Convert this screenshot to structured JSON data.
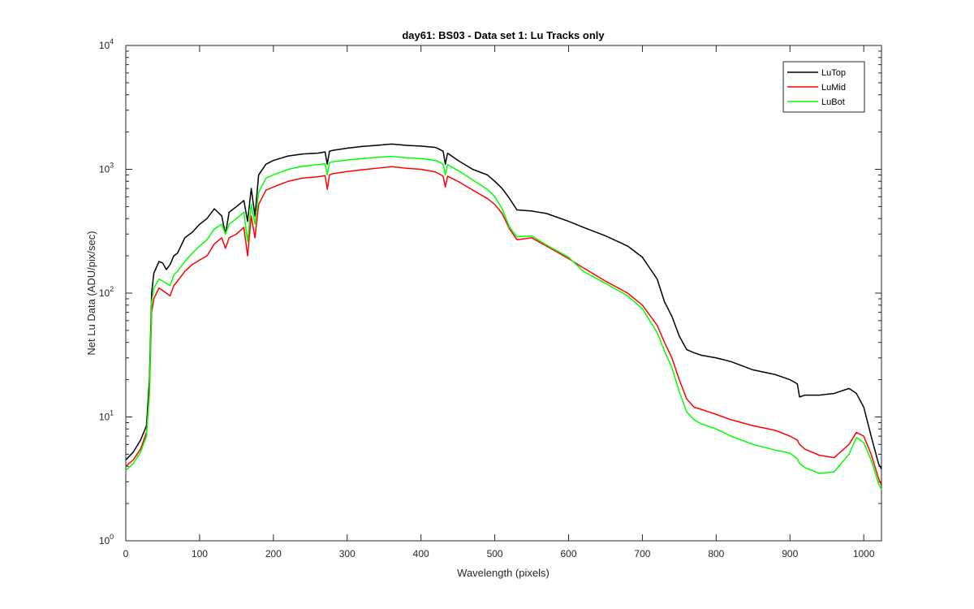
{
  "chart_data": {
    "type": "line",
    "title": "day61: BS03 - Data set 1: Lu Tracks only",
    "xlabel": "Wavelength (pixels)",
    "ylabel": "Net Lu Data (ADU/pix/sec)",
    "xlim": [
      0,
      1024
    ],
    "ylim": [
      1,
      10000
    ],
    "yscale": "log",
    "grid": false,
    "legend_position": "top-right",
    "x_ticks": [
      0,
      100,
      200,
      300,
      400,
      500,
      600,
      700,
      800,
      900,
      1000
    ],
    "y_ticks": [
      {
        "value": 1,
        "base": "10",
        "exp": "0"
      },
      {
        "value": 10,
        "base": "10",
        "exp": "1"
      },
      {
        "value": 100,
        "base": "10",
        "exp": "2"
      },
      {
        "value": 1000,
        "base": "10",
        "exp": "3"
      },
      {
        "value": 10000,
        "base": "10",
        "exp": "4"
      }
    ],
    "x": [
      0,
      10,
      20,
      28,
      32,
      35,
      38,
      45,
      50,
      55,
      60,
      65,
      70,
      80,
      90,
      100,
      110,
      120,
      130,
      135,
      140,
      150,
      160,
      165,
      170,
      175,
      180,
      190,
      200,
      210,
      220,
      240,
      260,
      270,
      273,
      276,
      280,
      300,
      320,
      340,
      360,
      380,
      400,
      420,
      430,
      433,
      436,
      450,
      470,
      490,
      500,
      510,
      520,
      530,
      550,
      570,
      600,
      620,
      650,
      680,
      700,
      720,
      730,
      740,
      750,
      760,
      770,
      780,
      800,
      820,
      850,
      880,
      900,
      910,
      913,
      920,
      940,
      960,
      980,
      990,
      1000,
      1010,
      1020,
      1024
    ],
    "series": [
      {
        "name": "LuTop",
        "color": "#000000",
        "values": [
          4.5,
          5.2,
          6.5,
          8.5,
          20,
          100,
          145,
          180,
          175,
          155,
          170,
          200,
          210,
          280,
          310,
          360,
          400,
          480,
          420,
          300,
          450,
          500,
          560,
          380,
          700,
          420,
          900,
          1100,
          1180,
          1230,
          1280,
          1330,
          1350,
          1380,
          1100,
          1400,
          1420,
          1480,
          1530,
          1560,
          1600,
          1560,
          1540,
          1500,
          1400,
          1100,
          1350,
          1180,
          1000,
          900,
          800,
          700,
          580,
          470,
          460,
          440,
          380,
          340,
          290,
          240,
          195,
          130,
          85,
          65,
          45,
          35,
          33,
          31.5,
          30,
          28,
          24,
          22,
          20,
          18.5,
          14.5,
          15,
          15,
          15.5,
          17,
          15.5,
          12,
          7,
          4.2,
          3.8
        ]
      },
      {
        "name": "LuMid",
        "color": "#ff0000",
        "values": [
          4.0,
          4.5,
          5.5,
          7.5,
          15,
          70,
          90,
          110,
          105,
          100,
          95,
          115,
          125,
          150,
          170,
          185,
          200,
          250,
          280,
          230,
          280,
          300,
          340,
          200,
          420,
          280,
          520,
          680,
          720,
          760,
          800,
          850,
          870,
          890,
          690,
          900,
          920,
          960,
          990,
          1020,
          1050,
          1020,
          1000,
          950,
          880,
          720,
          880,
          800,
          680,
          580,
          520,
          440,
          330,
          270,
          280,
          240,
          190,
          160,
          125,
          100,
          80,
          55,
          40,
          30,
          20,
          14,
          12,
          11.5,
          10.5,
          9.5,
          8.5,
          7.8,
          7.0,
          6.5,
          6.0,
          5.5,
          4.9,
          4.7,
          6.0,
          7.5,
          7.0,
          5.0,
          3.2,
          2.8
        ]
      },
      {
        "name": "LuBot",
        "color": "#00ff00",
        "values": [
          3.7,
          4.2,
          5.2,
          7.0,
          16,
          85,
          110,
          130,
          125,
          120,
          115,
          140,
          150,
          180,
          210,
          240,
          270,
          330,
          360,
          300,
          360,
          400,
          450,
          260,
          520,
          360,
          650,
          850,
          900,
          950,
          1000,
          1060,
          1090,
          1110,
          900,
          1130,
          1150,
          1190,
          1220,
          1250,
          1270,
          1240,
          1220,
          1180,
          1100,
          900,
          1090,
          980,
          820,
          690,
          600,
          480,
          340,
          285,
          290,
          245,
          195,
          150,
          120,
          95,
          75,
          48,
          34,
          25,
          16,
          11,
          9.5,
          8.8,
          8.0,
          7.0,
          6.0,
          5.4,
          5.1,
          4.6,
          4.2,
          3.9,
          3.5,
          3.6,
          5.0,
          6.8,
          6.2,
          4.5,
          2.9,
          2.6
        ]
      }
    ]
  }
}
